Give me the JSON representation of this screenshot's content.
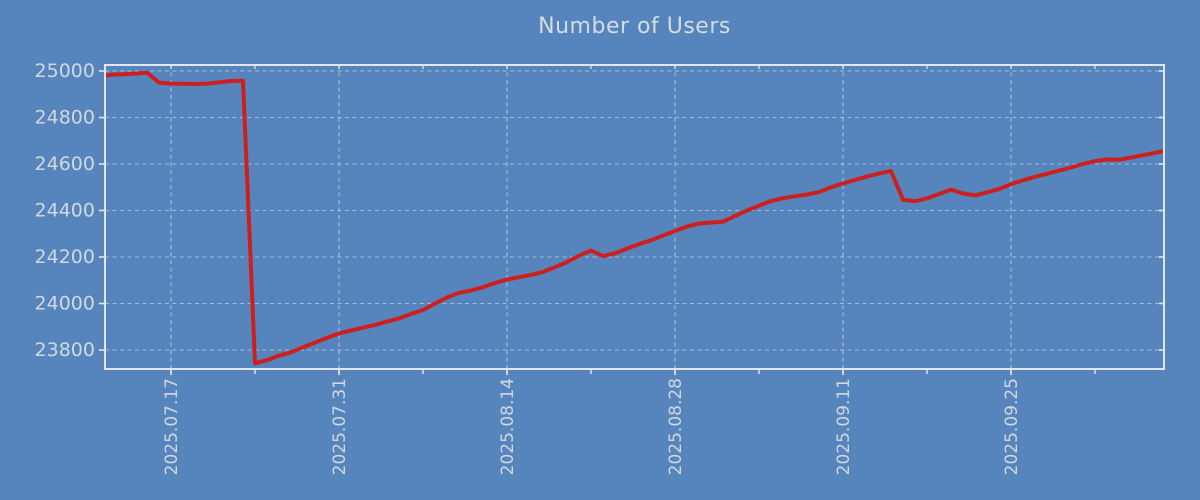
{
  "page": {
    "background_color": "#5585bc"
  },
  "chart": {
    "title": "Number of Users",
    "title_color": "#d6dce2",
    "axis_frame_color": "#e2e6ea",
    "tick_label_color": "#d2d8de",
    "grid_color": "#dde2e7",
    "line_color": "#ce1f1f",
    "line_width": 4
  },
  "chart_data": {
    "type": "line",
    "title": "Number of Users",
    "grid": true,
    "grid_style": "dashed",
    "legend": false,
    "ylim": [
      23715,
      25025
    ],
    "y_ticks": [
      23800,
      24000,
      24200,
      24400,
      24600,
      24800,
      25000
    ],
    "x_tick_labels": [
      "2025.07.17",
      "2025.07.31",
      "2025.08.14",
      "2025.08.28",
      "2025.09.11",
      "2025.09.25"
    ],
    "x_minor_tick_interval_days": 7,
    "series": [
      {
        "name": "Number of Users",
        "dates": [
          "2025.07.11",
          "2025.07.12",
          "2025.07.13",
          "2025.07.14",
          "2025.07.15",
          "2025.07.16",
          "2025.07.17",
          "2025.07.18",
          "2025.07.19",
          "2025.07.20",
          "2025.07.21",
          "2025.07.22",
          "2025.07.23",
          "2025.07.24",
          "2025.07.25",
          "2025.07.26",
          "2025.07.27",
          "2025.07.28",
          "2025.07.29",
          "2025.07.30",
          "2025.07.31",
          "2025.08.01",
          "2025.08.02",
          "2025.08.03",
          "2025.08.04",
          "2025.08.05",
          "2025.08.06",
          "2025.08.07",
          "2025.08.08",
          "2025.08.09",
          "2025.08.10",
          "2025.08.11",
          "2025.08.12",
          "2025.08.13",
          "2025.08.14",
          "2025.08.15",
          "2025.08.16",
          "2025.08.17",
          "2025.08.18",
          "2025.08.19",
          "2025.08.20",
          "2025.08.21",
          "2025.08.22",
          "2025.08.23",
          "2025.08.24",
          "2025.08.25",
          "2025.08.26",
          "2025.08.27",
          "2025.08.28",
          "2025.08.29",
          "2025.08.30",
          "2025.08.31",
          "2025.09.01",
          "2025.09.02",
          "2025.09.03",
          "2025.09.04",
          "2025.09.05",
          "2025.09.06",
          "2025.09.07",
          "2025.09.08",
          "2025.09.09",
          "2025.09.10",
          "2025.09.11",
          "2025.09.12",
          "2025.09.13",
          "2025.09.14",
          "2025.09.15",
          "2025.09.16",
          "2025.09.17",
          "2025.09.18",
          "2025.09.19",
          "2025.09.20",
          "2025.09.21",
          "2025.09.22",
          "2025.09.23",
          "2025.09.24",
          "2025.09.25",
          "2025.09.26",
          "2025.09.27",
          "2025.09.28",
          "2025.09.29",
          "2025.09.30",
          "2025.10.01",
          "2025.10.02",
          "2025.10.03",
          "2025.10.04",
          "2025.10.05",
          "2025.10.06",
          "2025.10.07",
          "2025.10.08"
        ],
        "values": [
          24980,
          24984,
          24986,
          24989,
          24993,
          24950,
          24946,
          24945,
          24944,
          24946,
          24951,
          24957,
          24958,
          23743,
          23756,
          23776,
          23790,
          23812,
          23832,
          23852,
          23871,
          23884,
          23896,
          23908,
          23922,
          23936,
          23955,
          23972,
          24000,
          24026,
          24046,
          24056,
          24070,
          24088,
          24103,
          24113,
          24123,
          24136,
          24156,
          24178,
          24206,
          24228,
          24204,
          24216,
          24236,
          24255,
          24272,
          24292,
          24312,
          24331,
          24344,
          24348,
          24352,
          24376,
          24400,
          24421,
          24441,
          24453,
          24461,
          24469,
          24479,
          24500,
          24516,
          24531,
          24546,
          24559,
          24570,
          24446,
          24440,
          24452,
          24471,
          24490,
          24473,
          24465,
          24478,
          24492,
          24513,
          24530,
          24545,
          24558,
          24571,
          24585,
          24600,
          24612,
          24620,
          24618,
          24628,
          24638,
          24648,
          24656
        ]
      }
    ]
  }
}
